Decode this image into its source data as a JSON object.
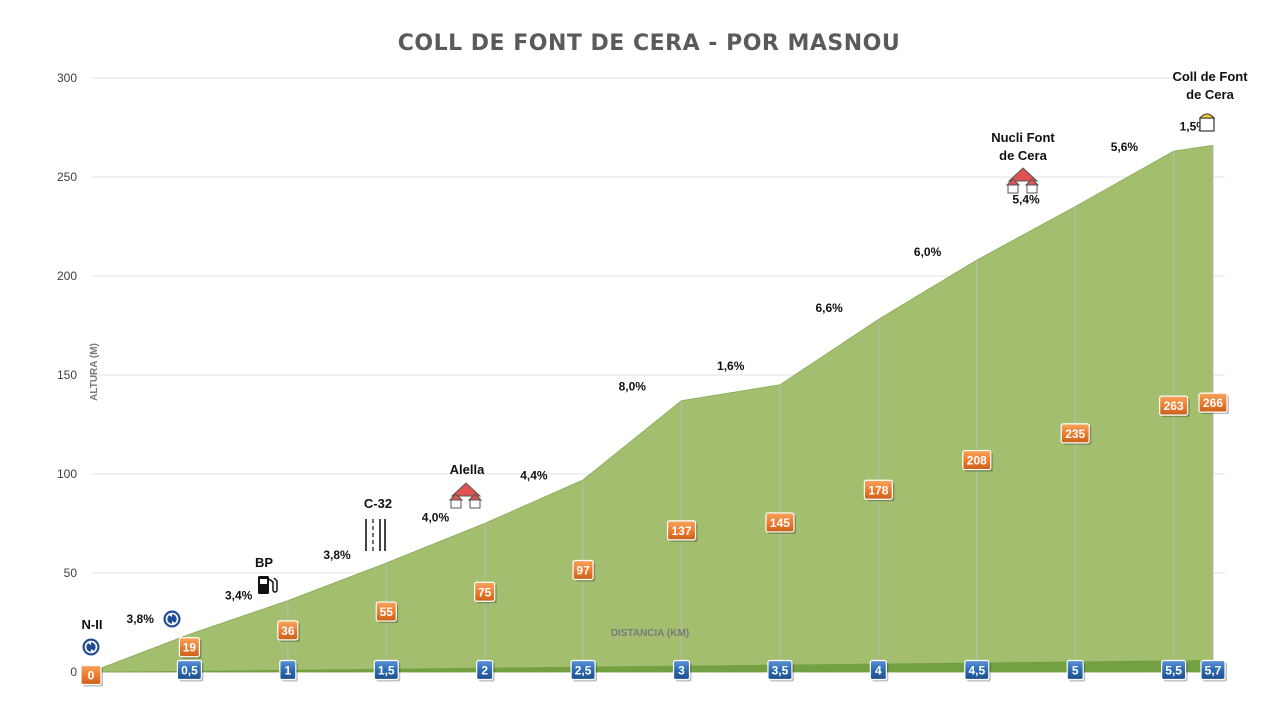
{
  "chart_data": {
    "type": "area",
    "title": "COLL DE FONT DE CERA - POR MASNOU",
    "xlabel": "DISTANCIA (KM)",
    "ylabel": "ALTURA (M)",
    "ylim": [
      0,
      300
    ],
    "yticks": [
      "0",
      "50",
      "100",
      "150",
      "200",
      "250",
      "300"
    ],
    "grid": true,
    "x": [
      0,
      0.5,
      1,
      1.5,
      2,
      2.5,
      3,
      3.5,
      4,
      4.5,
      5,
      5.5,
      5.7
    ],
    "x_labels": [
      "0",
      "0,5",
      "1",
      "1,5",
      "2",
      "2,5",
      "3",
      "3,5",
      "4",
      "4,5",
      "5",
      "5,5",
      "5,7"
    ],
    "y": [
      0,
      19,
      36,
      55,
      75,
      97,
      137,
      145,
      178,
      208,
      235,
      263,
      266
    ],
    "y_labels": [
      "0",
      "19",
      "36",
      "55",
      "75",
      "97",
      "137",
      "145",
      "178",
      "208",
      "235",
      "263",
      "266"
    ],
    "gradients": [
      "3,8%",
      "3,4%",
      "3,8%",
      "4,0%",
      "4,4%",
      "8,0%",
      "1,6%",
      "6,6%",
      "6,0%",
      "5,4%",
      "5,6%",
      "1,5%"
    ],
    "landmarks": [
      {
        "km": 0,
        "lines": [
          "N-II"
        ],
        "icon": "roundabout-icon"
      },
      {
        "km": 0.5,
        "lines": [],
        "icon": "roundabout-icon"
      },
      {
        "km": 1,
        "lines": [
          "BP"
        ],
        "icon": "fuel-pump-icon"
      },
      {
        "km": 1.5,
        "lines": [
          "C-32"
        ],
        "icon": "highway-icon"
      },
      {
        "km": 2,
        "lines": [
          "Alella"
        ],
        "icon": "village-icon"
      },
      {
        "km": 5,
        "lines": [
          "Nucli Font",
          "de Cera"
        ],
        "icon": "village-icon"
      },
      {
        "km": 5.7,
        "lines": [
          "Coll de Font",
          "de Cera"
        ],
        "icon": "summit-sign-icon"
      }
    ],
    "colors": {
      "area": "#a2be6e",
      "area_edge": "#8fb05a",
      "altitude_box": "#ed7d31",
      "distance_box": "#2e6cb3",
      "axis_band": "#6e9c3c"
    }
  }
}
